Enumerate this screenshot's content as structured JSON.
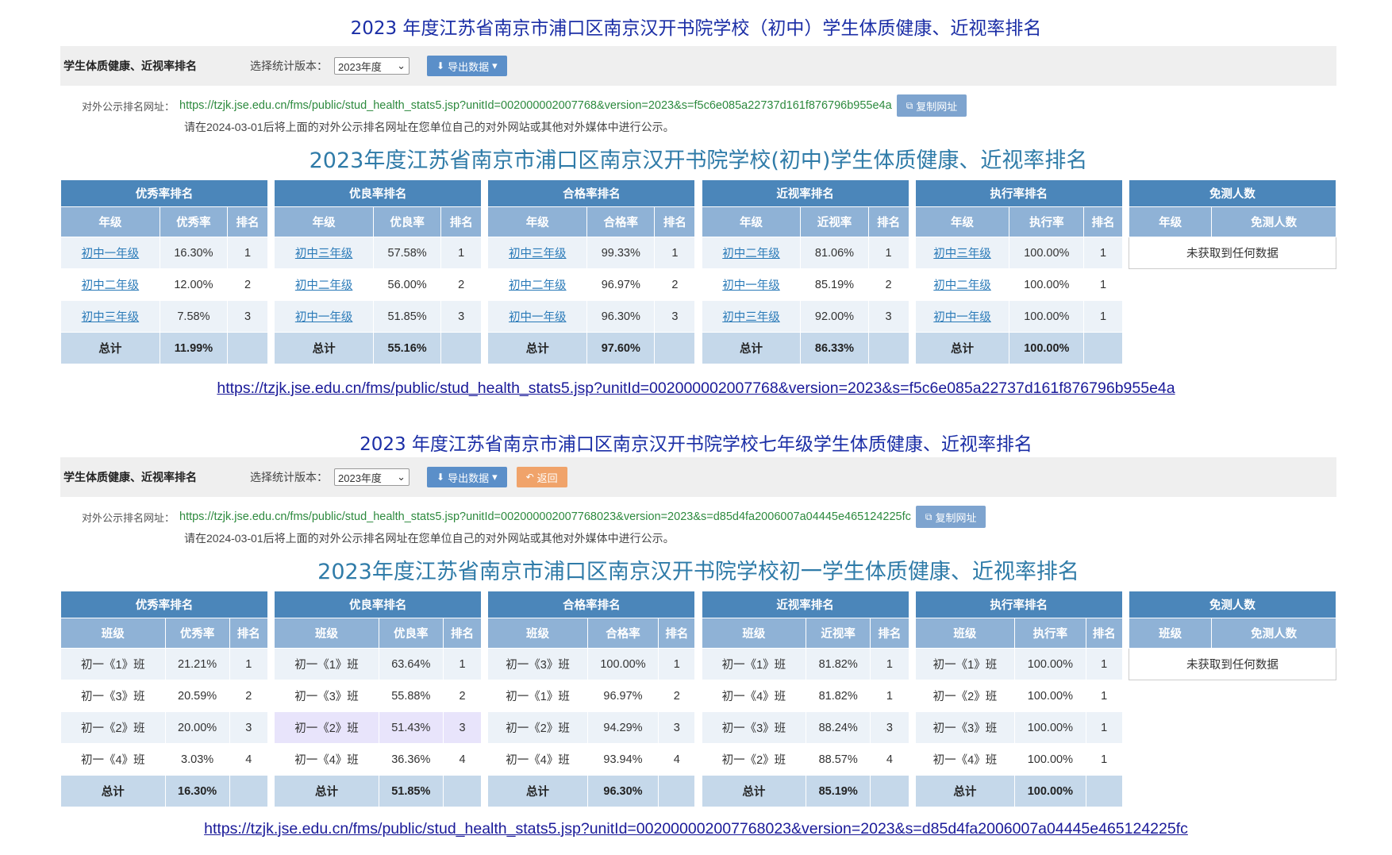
{
  "block1": {
    "title": "2023 年度江苏省南京市浦口区南京汉开书院学校（初中）学生体质健康、近视率排名",
    "toolbar": {
      "title": "学生体质健康、近视率排名",
      "version_label": "选择统计版本：",
      "version_value": "2023年度",
      "export_label": "导出数据"
    },
    "url_label": "对外公示排名网址：",
    "url": "https://tzjk.jse.edu.cn/fms/public/stud_health_stats5.jsp?unitId=002000002007768&version=2023&s=f5c6e085a22737d161f876796b955e4a",
    "copy_label": "复制网址",
    "note": "请在2024-03-01后将上面的对外公示排名网址在您单位自己的对外网站或其他对外媒体中进行公示。",
    "subtitle": "2023年度江苏省南京市浦口区南京汉开书院学校(初中)学生体质健康、近视率排名",
    "tables": [
      {
        "head": "优秀率排名",
        "cols": [
          "年级",
          "优秀率",
          "排名"
        ],
        "rows": [
          [
            "初中一年级",
            "16.30%",
            "1"
          ],
          [
            "初中二年级",
            "12.00%",
            "2"
          ],
          [
            "初中三年级",
            "7.58%",
            "3"
          ]
        ],
        "total": [
          "总计",
          "11.99%",
          ""
        ]
      },
      {
        "head": "优良率排名",
        "cols": [
          "年级",
          "优良率",
          "排名"
        ],
        "rows": [
          [
            "初中三年级",
            "57.58%",
            "1"
          ],
          [
            "初中二年级",
            "56.00%",
            "2"
          ],
          [
            "初中一年级",
            "51.85%",
            "3"
          ]
        ],
        "total": [
          "总计",
          "55.16%",
          ""
        ]
      },
      {
        "head": "合格率排名",
        "cols": [
          "年级",
          "合格率",
          "排名"
        ],
        "rows": [
          [
            "初中三年级",
            "99.33%",
            "1"
          ],
          [
            "初中二年级",
            "96.97%",
            "2"
          ],
          [
            "初中一年级",
            "96.30%",
            "3"
          ]
        ],
        "total": [
          "总计",
          "97.60%",
          ""
        ]
      },
      {
        "head": "近视率排名",
        "cols": [
          "年级",
          "近视率",
          "排名"
        ],
        "rows": [
          [
            "初中二年级",
            "81.06%",
            "1"
          ],
          [
            "初中一年级",
            "85.19%",
            "2"
          ],
          [
            "初中三年级",
            "92.00%",
            "3"
          ]
        ],
        "total": [
          "总计",
          "86.33%",
          ""
        ]
      },
      {
        "head": "执行率排名",
        "cols": [
          "年级",
          "执行率",
          "排名"
        ],
        "rows": [
          [
            "初中三年级",
            "100.00%",
            "1"
          ],
          [
            "初中二年级",
            "100.00%",
            "1"
          ],
          [
            "初中一年级",
            "100.00%",
            "1"
          ]
        ],
        "total": [
          "总计",
          "100.00%",
          ""
        ]
      }
    ],
    "exempt": {
      "head": "免测人数",
      "cols": [
        "年级",
        "免测人数"
      ],
      "nodata": "未获取到任何数据"
    },
    "big_url": "https://tzjk.jse.edu.cn/fms/public/stud_health_stats5.jsp?unitId=002000002007768&version=2023&s=f5c6e085a22737d161f876796b955e4a"
  },
  "block2": {
    "title": "2023 年度江苏省南京市浦口区南京汉开书院学校七年级学生体质健康、近视率排名",
    "toolbar": {
      "title": "学生体质健康、近视率排名",
      "version_label": "选择统计版本：",
      "version_value": "2023年度",
      "export_label": "导出数据",
      "back_label": "返回"
    },
    "url_label": "对外公示排名网址：",
    "url": "https://tzjk.jse.edu.cn/fms/public/stud_health_stats5.jsp?unitId=002000002007768023&version=2023&s=d85d4fa2006007a04445e465124225fc",
    "copy_label": "复制网址",
    "note": "请在2024-03-01后将上面的对外公示排名网址在您单位自己的对外网站或其他对外媒体中进行公示。",
    "subtitle": "2023年度江苏省南京市浦口区南京汉开书院学校初一学生体质健康、近视率排名",
    "tables": [
      {
        "head": "优秀率排名",
        "cols": [
          "班级",
          "优秀率",
          "排名"
        ],
        "rows": [
          [
            "初一《1》班",
            "21.21%",
            "1"
          ],
          [
            "初一《3》班",
            "20.59%",
            "2"
          ],
          [
            "初一《2》班",
            "20.00%",
            "3"
          ],
          [
            "初一《4》班",
            "3.03%",
            "4"
          ]
        ],
        "total": [
          "总计",
          "16.30%",
          ""
        ]
      },
      {
        "head": "优良率排名",
        "cols": [
          "班级",
          "优良率",
          "排名"
        ],
        "rows": [
          [
            "初一《1》班",
            "63.64%",
            "1"
          ],
          [
            "初一《3》班",
            "55.88%",
            "2"
          ],
          [
            "初一《2》班",
            "51.43%",
            "3"
          ],
          [
            "初一《4》班",
            "36.36%",
            "4"
          ]
        ],
        "total": [
          "总计",
          "51.85%",
          ""
        ]
      },
      {
        "head": "合格率排名",
        "cols": [
          "班级",
          "合格率",
          "排名"
        ],
        "rows": [
          [
            "初一《3》班",
            "100.00%",
            "1"
          ],
          [
            "初一《1》班",
            "96.97%",
            "2"
          ],
          [
            "初一《2》班",
            "94.29%",
            "3"
          ],
          [
            "初一《4》班",
            "93.94%",
            "4"
          ]
        ],
        "total": [
          "总计",
          "96.30%",
          ""
        ]
      },
      {
        "head": "近视率排名",
        "cols": [
          "班级",
          "近视率",
          "排名"
        ],
        "rows": [
          [
            "初一《1》班",
            "81.82%",
            "1"
          ],
          [
            "初一《4》班",
            "81.82%",
            "1"
          ],
          [
            "初一《3》班",
            "88.24%",
            "3"
          ],
          [
            "初一《2》班",
            "88.57%",
            "4"
          ]
        ],
        "total": [
          "总计",
          "85.19%",
          ""
        ]
      },
      {
        "head": "执行率排名",
        "cols": [
          "班级",
          "执行率",
          "排名"
        ],
        "rows": [
          [
            "初一《1》班",
            "100.00%",
            "1"
          ],
          [
            "初一《2》班",
            "100.00%",
            "1"
          ],
          [
            "初一《3》班",
            "100.00%",
            "1"
          ],
          [
            "初一《4》班",
            "100.00%",
            "1"
          ]
        ],
        "total": [
          "总计",
          "100.00%",
          ""
        ]
      }
    ],
    "exempt": {
      "head": "免测人数",
      "cols": [
        "班级",
        "免测人数"
      ],
      "nodata": "未获取到任何数据"
    },
    "big_url": "https://tzjk.jse.edu.cn/fms/public/stud_health_stats5.jsp?unitId=002000002007768023&version=2023&s=d85d4fa2006007a04445e465124225fc"
  }
}
